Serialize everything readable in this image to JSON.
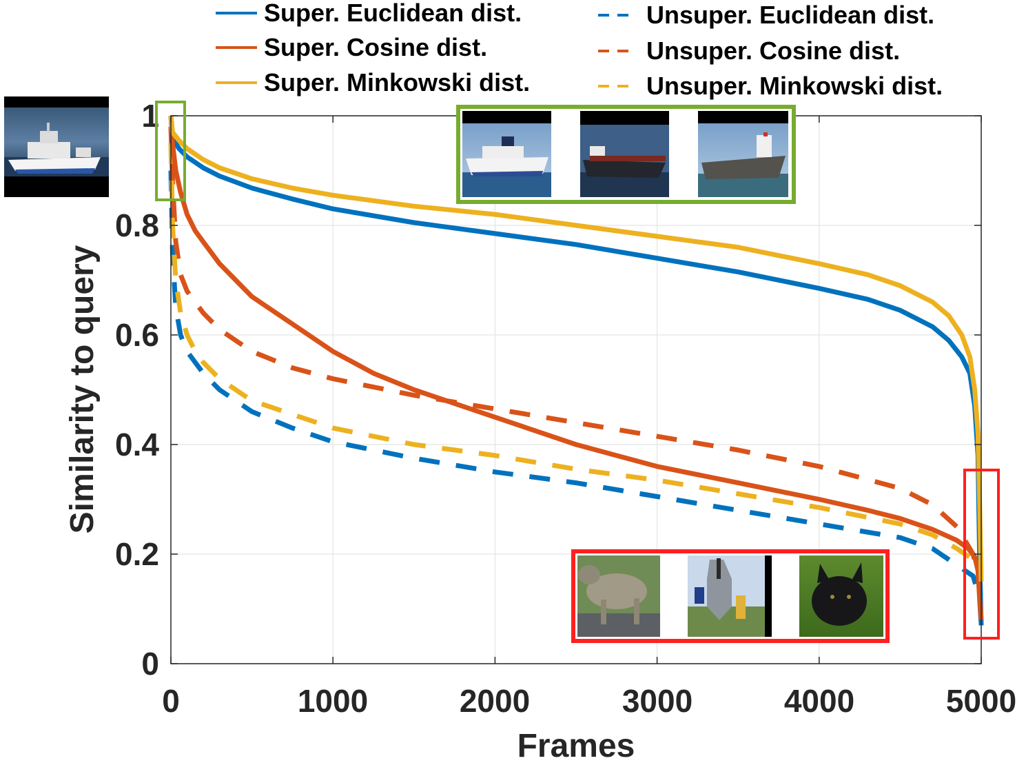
{
  "chart_data": {
    "type": "line",
    "xlabel": "Frames",
    "ylabel": "Similarity to query",
    "xlim": [
      0,
      5000
    ],
    "ylim": [
      0,
      1
    ],
    "xticks": [
      0,
      1000,
      2000,
      3000,
      4000,
      5000
    ],
    "yticks": [
      0,
      0.2,
      0.4,
      0.6,
      0.8,
      1
    ],
    "xtick_labels": [
      "0",
      "1000",
      "2000",
      "3000",
      "4000",
      "5000"
    ],
    "ytick_labels": [
      "0",
      "0.2",
      "0.4",
      "0.6",
      "0.8",
      "1"
    ],
    "grid": true,
    "legend_position": "top",
    "colors": {
      "blue": "#0072BD",
      "orange": "#D95319",
      "yellow": "#EDB120"
    },
    "series": [
      {
        "name": "Super. Euclidean dist.",
        "color": "#0072BD",
        "style": "solid",
        "x": [
          0,
          10,
          50,
          100,
          200,
          300,
          500,
          750,
          1000,
          1500,
          2000,
          2500,
          3000,
          3500,
          4000,
          4300,
          4500,
          4700,
          4800,
          4880,
          4930,
          4960,
          4980,
          4990,
          5000
        ],
        "y": [
          1.0,
          0.96,
          0.94,
          0.925,
          0.905,
          0.89,
          0.868,
          0.848,
          0.83,
          0.805,
          0.785,
          0.765,
          0.74,
          0.715,
          0.685,
          0.665,
          0.645,
          0.615,
          0.59,
          0.56,
          0.53,
          0.47,
          0.38,
          0.2,
          0.07
        ]
      },
      {
        "name": "Super. Cosine dist.",
        "color": "#D95319",
        "style": "solid",
        "x": [
          0,
          10,
          30,
          60,
          100,
          150,
          200,
          300,
          400,
          500,
          750,
          1000,
          1250,
          1500,
          1750,
          2000,
          2500,
          3000,
          3500,
          4000,
          4300,
          4500,
          4700,
          4850,
          4920,
          4960,
          4980,
          4990,
          5000
        ],
        "y": [
          1.0,
          0.95,
          0.9,
          0.86,
          0.82,
          0.79,
          0.77,
          0.73,
          0.7,
          0.67,
          0.62,
          0.57,
          0.53,
          0.5,
          0.475,
          0.45,
          0.4,
          0.36,
          0.33,
          0.3,
          0.28,
          0.265,
          0.245,
          0.225,
          0.21,
          0.195,
          0.17,
          0.12,
          0.08
        ]
      },
      {
        "name": "Super. Minkowski dist.",
        "color": "#EDB120",
        "style": "solid",
        "x": [
          0,
          10,
          50,
          100,
          200,
          300,
          500,
          750,
          1000,
          1500,
          2000,
          2500,
          3000,
          3500,
          4000,
          4300,
          4500,
          4700,
          4800,
          4880,
          4930,
          4960,
          4980,
          4990,
          5000
        ],
        "y": [
          1.0,
          0.97,
          0.955,
          0.94,
          0.92,
          0.905,
          0.885,
          0.868,
          0.855,
          0.835,
          0.82,
          0.8,
          0.78,
          0.76,
          0.73,
          0.71,
          0.69,
          0.66,
          0.635,
          0.6,
          0.56,
          0.5,
          0.42,
          0.3,
          0.15
        ]
      },
      {
        "name": "Unsuper. Euclidean dist.",
        "color": "#0072BD",
        "style": "dashed",
        "x": [
          0,
          10,
          30,
          60,
          100,
          150,
          200,
          300,
          500,
          750,
          1000,
          1500,
          2000,
          2500,
          3000,
          3500,
          4000,
          4500,
          4700,
          4850,
          4950,
          4990,
          5000
        ],
        "y": [
          0.9,
          0.75,
          0.65,
          0.6,
          0.57,
          0.55,
          0.53,
          0.5,
          0.46,
          0.43,
          0.405,
          0.375,
          0.35,
          0.33,
          0.305,
          0.28,
          0.255,
          0.23,
          0.21,
          0.18,
          0.16,
          0.12,
          0.07
        ]
      },
      {
        "name": "Unsuper. Cosine dist.",
        "color": "#D95319",
        "style": "dashed",
        "x": [
          0,
          10,
          30,
          60,
          100,
          150,
          200,
          300,
          500,
          750,
          1000,
          1500,
          2000,
          2500,
          3000,
          3500,
          4000,
          4500,
          4700,
          4850,
          4950,
          4990,
          5000
        ],
        "y": [
          0.98,
          0.88,
          0.77,
          0.71,
          0.68,
          0.66,
          0.64,
          0.61,
          0.57,
          0.54,
          0.52,
          0.49,
          0.465,
          0.44,
          0.415,
          0.39,
          0.36,
          0.32,
          0.29,
          0.25,
          0.2,
          0.15,
          0.1
        ]
      },
      {
        "name": "Unsuper. Minkowski dist.",
        "color": "#EDB120",
        "style": "dashed",
        "x": [
          0,
          10,
          30,
          60,
          100,
          150,
          200,
          300,
          500,
          750,
          1000,
          1500,
          2000,
          2500,
          3000,
          3500,
          4000,
          4500,
          4700,
          4850,
          4950,
          4990,
          5000
        ],
        "y": [
          0.95,
          0.8,
          0.7,
          0.64,
          0.6,
          0.57,
          0.55,
          0.52,
          0.48,
          0.455,
          0.43,
          0.4,
          0.38,
          0.355,
          0.335,
          0.31,
          0.285,
          0.255,
          0.235,
          0.21,
          0.19,
          0.17,
          0.15
        ]
      }
    ],
    "annotations": [
      {
        "name": "query-image",
        "description": "query thumbnail: ship",
        "color": ""
      },
      {
        "name": "top-matches",
        "description": "most similar frames: ships",
        "color": "#77AC30",
        "x_range": [
          0,
          50
        ],
        "y_range": [
          0.85,
          1.0
        ]
      },
      {
        "name": "bottom-matches",
        "description": "least similar frames: baboon, jet, dog",
        "color": "#FF2020",
        "x_range": [
          4920,
          5060
        ],
        "y_range": [
          0.04,
          0.35
        ]
      }
    ]
  }
}
